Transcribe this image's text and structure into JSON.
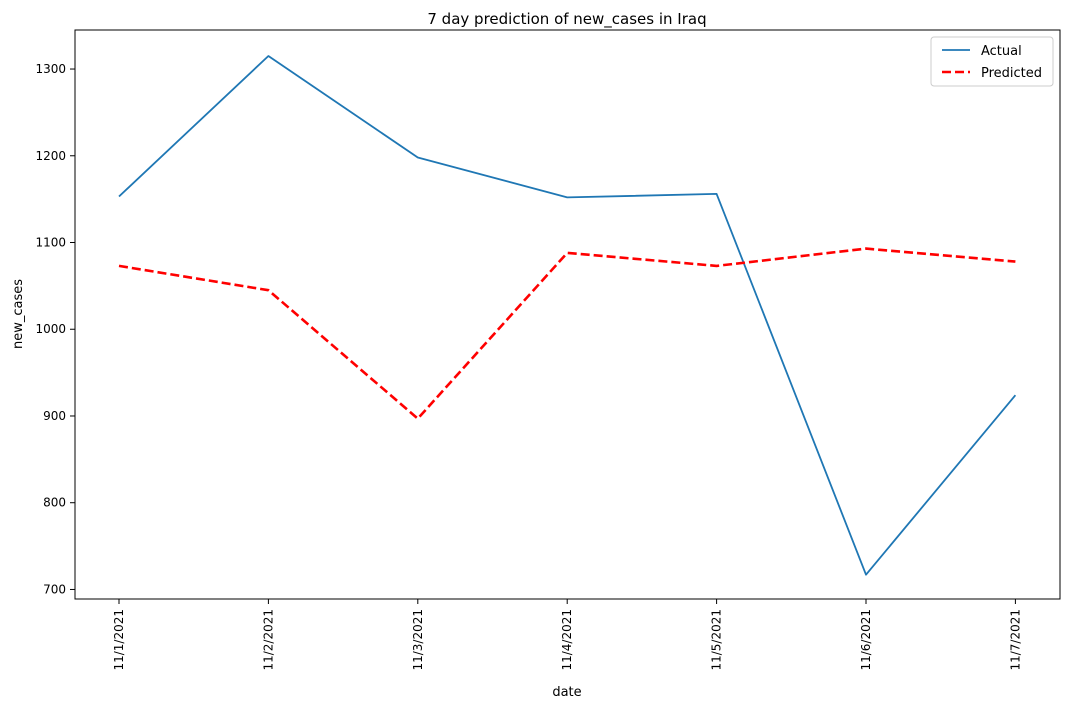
{
  "chart_data": {
    "type": "line",
    "title": "7 day prediction of new_cases in Iraq",
    "xlabel": "date",
    "ylabel": "new_cases",
    "categories": [
      "11/1/2021",
      "11/2/2021",
      "11/3/2021",
      "11/4/2021",
      "11/5/2021",
      "11/6/2021",
      "11/7/2021"
    ],
    "series": [
      {
        "name": "Actual",
        "values": [
          1153,
          1315,
          1198,
          1152,
          1156,
          717,
          924
        ],
        "color": "#1f77b4",
        "style": "solid"
      },
      {
        "name": "Predicted",
        "values": [
          1073,
          1045,
          897,
          1088,
          1073,
          1093,
          1078
        ],
        "color": "#ff0000",
        "style": "dashed"
      }
    ],
    "ylim": [
      689,
      1345
    ],
    "yticks": [
      700,
      800,
      900,
      1000,
      1100,
      1200,
      1300
    ],
    "grid": false,
    "legend_position": "top-right"
  }
}
